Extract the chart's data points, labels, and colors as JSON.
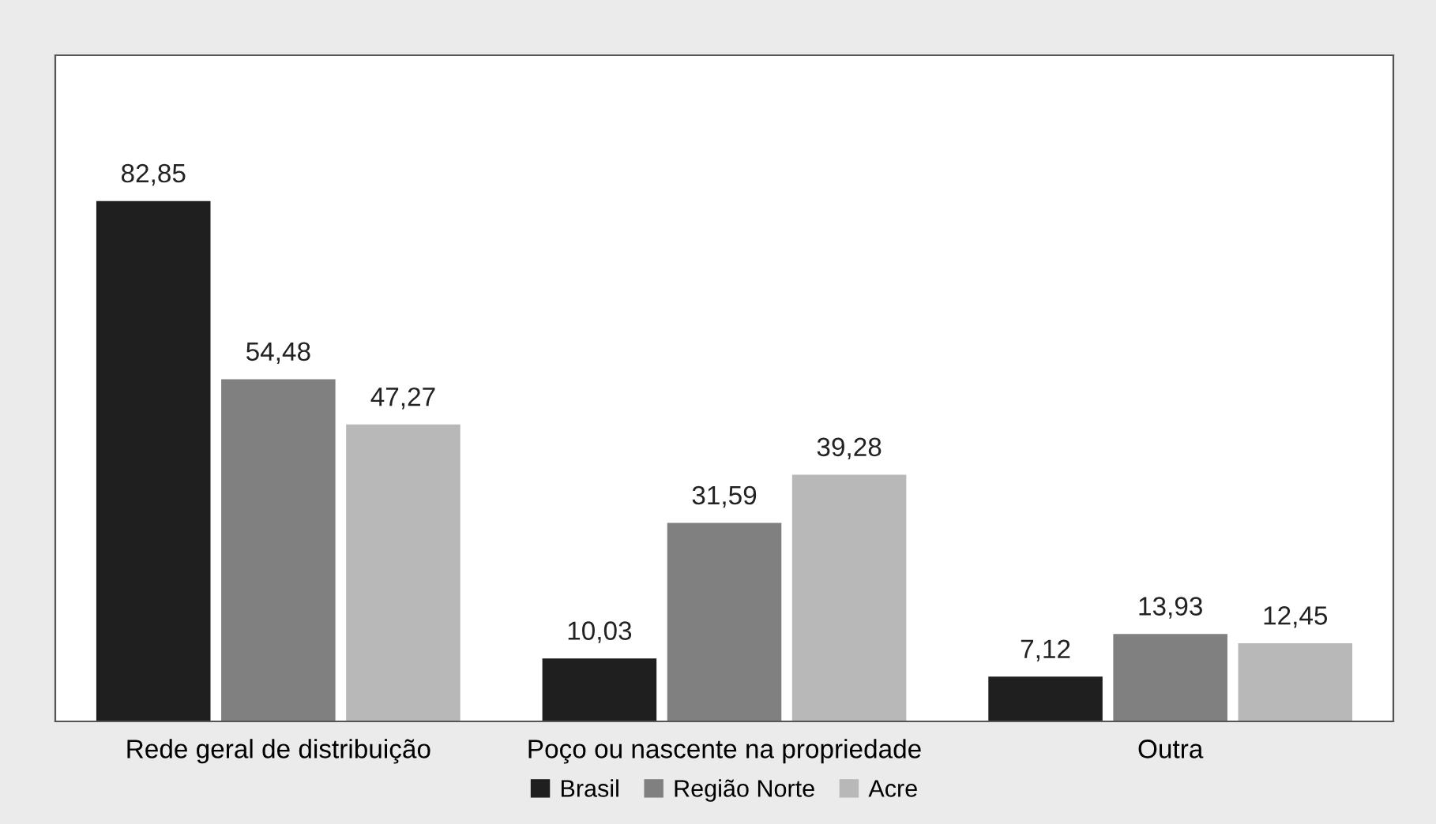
{
  "chart_data": {
    "type": "bar",
    "categories": [
      "Rede geral de distribuição",
      "Poço ou nascente na propriedade",
      "Outra"
    ],
    "series": [
      {
        "name": "Brasil",
        "color": "#1f1f1f",
        "values": [
          82.85,
          10.03,
          7.12
        ],
        "value_labels": [
          "82,85",
          "10,03",
          "7,12"
        ]
      },
      {
        "name": "Região Norte",
        "color": "#808080",
        "values": [
          54.48,
          31.59,
          13.93
        ],
        "value_labels": [
          "54,48",
          "31,59",
          "13,93"
        ]
      },
      {
        "name": "Acre",
        "color": "#b8b8b8",
        "values": [
          47.27,
          39.28,
          12.45
        ],
        "value_labels": [
          "47,27",
          "39,28",
          "12,45"
        ]
      }
    ],
    "legend": "bottom",
    "grid": false
  }
}
